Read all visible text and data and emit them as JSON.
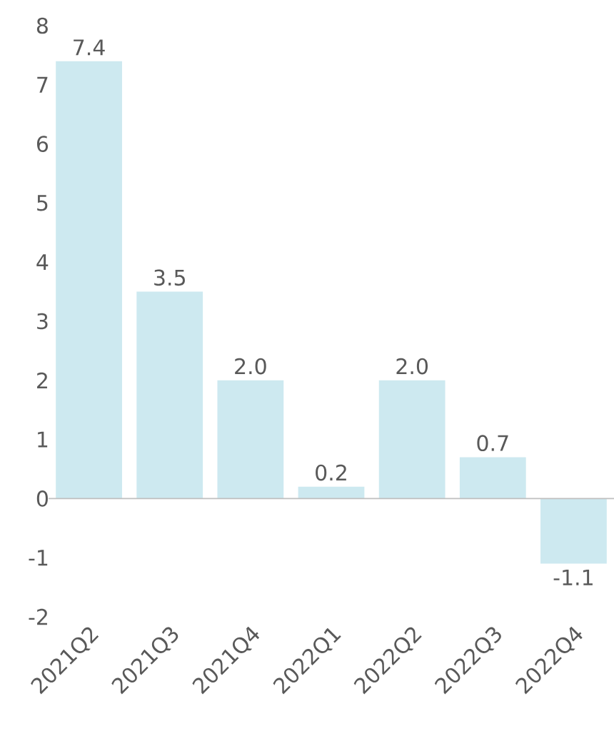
{
  "chart_data": {
    "type": "bar",
    "categories": [
      "2021Q2",
      "2021Q3",
      "2021Q4",
      "2022Q1",
      "2022Q2",
      "2022Q3",
      "2022Q4"
    ],
    "values": [
      7.4,
      3.5,
      2.0,
      0.2,
      2.0,
      0.7,
      -1.1
    ],
    "value_labels": [
      "7.4",
      "3.5",
      "2.0",
      "0.2",
      "2.0",
      "0.7",
      "-1.1"
    ],
    "color": "#cde9f0",
    "ylim": [
      -2,
      8
    ],
    "yticks": [
      -2,
      -1,
      0,
      1,
      2,
      3,
      4,
      5,
      6,
      7,
      8
    ]
  }
}
